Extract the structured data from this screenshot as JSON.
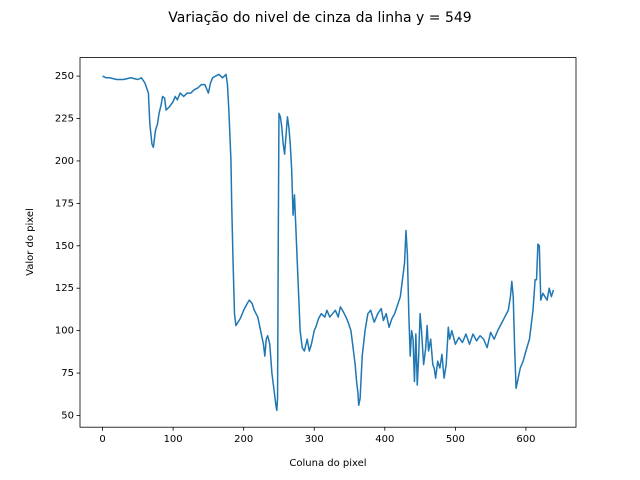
{
  "chart_data": {
    "type": "line",
    "title": "Variação do nivel de cinza da linha y = 549",
    "x_label": "Coluna do pixel",
    "y_label": "Valor do pixel",
    "x": [
      0,
      5,
      10,
      20,
      30,
      40,
      50,
      55,
      60,
      65,
      67,
      70,
      72,
      75,
      78,
      80,
      83,
      85,
      88,
      90,
      95,
      100,
      103,
      106,
      110,
      115,
      120,
      125,
      130,
      135,
      140,
      145,
      150,
      153,
      156,
      160,
      165,
      170,
      175,
      177,
      179,
      180,
      182,
      183,
      185,
      187,
      189,
      192,
      195,
      200,
      205,
      208,
      212,
      215,
      220,
      225,
      228,
      230,
      232,
      234,
      237,
      240,
      243,
      246,
      247,
      248,
      249,
      250,
      252,
      254,
      256,
      258,
      260,
      262,
      264,
      266,
      268,
      270,
      272,
      274,
      276,
      278,
      280,
      283,
      286,
      290,
      293,
      296,
      300,
      303,
      306,
      310,
      315,
      318,
      322,
      326,
      330,
      334,
      337,
      340,
      345,
      348,
      352,
      355,
      358,
      360,
      362,
      363,
      365,
      368,
      372,
      376,
      380,
      385,
      390,
      395,
      398,
      402,
      406,
      410,
      414,
      418,
      422,
      425,
      428,
      430,
      432,
      434,
      436,
      438,
      440,
      442,
      444,
      446,
      448,
      450,
      452,
      455,
      458,
      460,
      462,
      465,
      468,
      470,
      472,
      475,
      478,
      481,
      484,
      487,
      490,
      492,
      495,
      500,
      505,
      510,
      515,
      520,
      525,
      530,
      535,
      540,
      545,
      550,
      555,
      560,
      565,
      570,
      575,
      578,
      580,
      582,
      584,
      586,
      588,
      592,
      596,
      600,
      605,
      610,
      613,
      615,
      617,
      619,
      621,
      624,
      627,
      630,
      633,
      636,
      639
    ],
    "series": [
      {
        "color": "#1f77b4",
        "values": [
          250,
          249,
          249,
          248,
          248,
          249,
          248,
          249,
          246,
          240,
          222,
          210,
          208,
          218,
          222,
          228,
          233,
          238,
          237,
          230,
          232,
          235,
          238,
          236,
          240,
          238,
          240,
          240,
          242,
          243,
          245,
          245,
          240,
          246,
          249,
          250,
          251,
          249,
          251,
          245,
          230,
          220,
          200,
          175,
          140,
          110,
          103,
          105,
          107,
          112,
          116,
          118,
          116,
          112,
          108,
          98,
          92,
          85,
          95,
          97,
          92,
          75,
          65,
          55,
          53,
          60,
          150,
          228,
          226,
          220,
          210,
          204,
          215,
          226,
          220,
          210,
          195,
          168,
          180,
          160,
          140,
          120,
          100,
          90,
          88,
          95,
          88,
          92,
          100,
          103,
          107,
          110,
          108,
          112,
          108,
          110,
          112,
          108,
          114,
          112,
          108,
          105,
          100,
          90,
          80,
          70,
          63,
          56,
          60,
          85,
          100,
          110,
          112,
          105,
          110,
          113,
          106,
          110,
          102,
          107,
          110,
          115,
          120,
          130,
          140,
          159,
          145,
          110,
          85,
          100,
          95,
          70,
          98,
          68,
          85,
          110,
          100,
          80,
          90,
          103,
          88,
          95,
          80,
          78,
          72,
          82,
          78,
          86,
          72,
          80,
          102,
          95,
          100,
          92,
          96,
          93,
          98,
          92,
          98,
          94,
          97,
          95,
          90,
          99,
          95,
          100,
          104,
          108,
          112,
          120,
          129,
          120,
          90,
          66,
          70,
          78,
          82,
          88,
          95,
          112,
          130,
          130,
          151,
          150,
          118,
          122,
          120,
          118,
          125,
          120,
          124
        ]
      }
    ],
    "xlim": [
      -31.95,
      670.95
    ],
    "ylim": [
      43.1,
      260.9
    ],
    "xticks": [
      0,
      100,
      200,
      300,
      400,
      500,
      600
    ],
    "yticks": [
      50,
      75,
      100,
      125,
      150,
      175,
      200,
      225,
      250
    ]
  }
}
